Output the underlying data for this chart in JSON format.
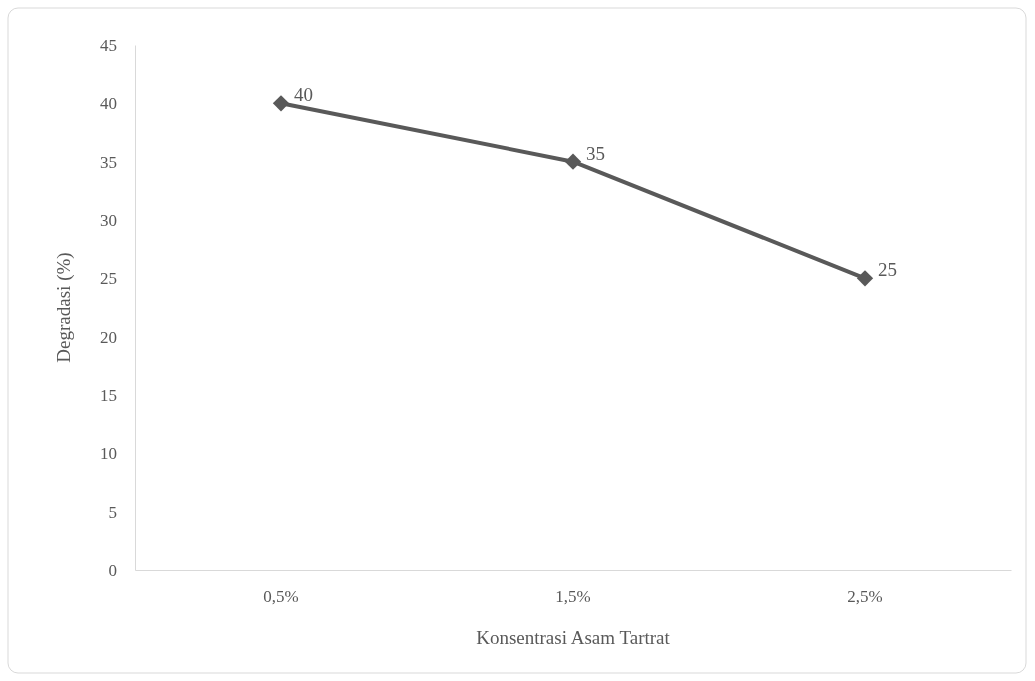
{
  "chart_data": {
    "type": "line",
    "xlabel": "Konsentrasi Asam Tartrat",
    "ylabel": "Degradasi (%)",
    "categories": [
      "0,5%",
      "1,5%",
      "2,5%"
    ],
    "series": [
      {
        "color": "#595959",
        "values": [
          40,
          35,
          25
        ]
      }
    ],
    "ylim": [
      0,
      45
    ],
    "yticks": [
      0,
      5,
      10,
      15,
      20,
      25,
      30,
      35,
      40,
      45
    ],
    "grid": false,
    "marker": "diamond",
    "line_style": "solid",
    "data_labels": true
  }
}
